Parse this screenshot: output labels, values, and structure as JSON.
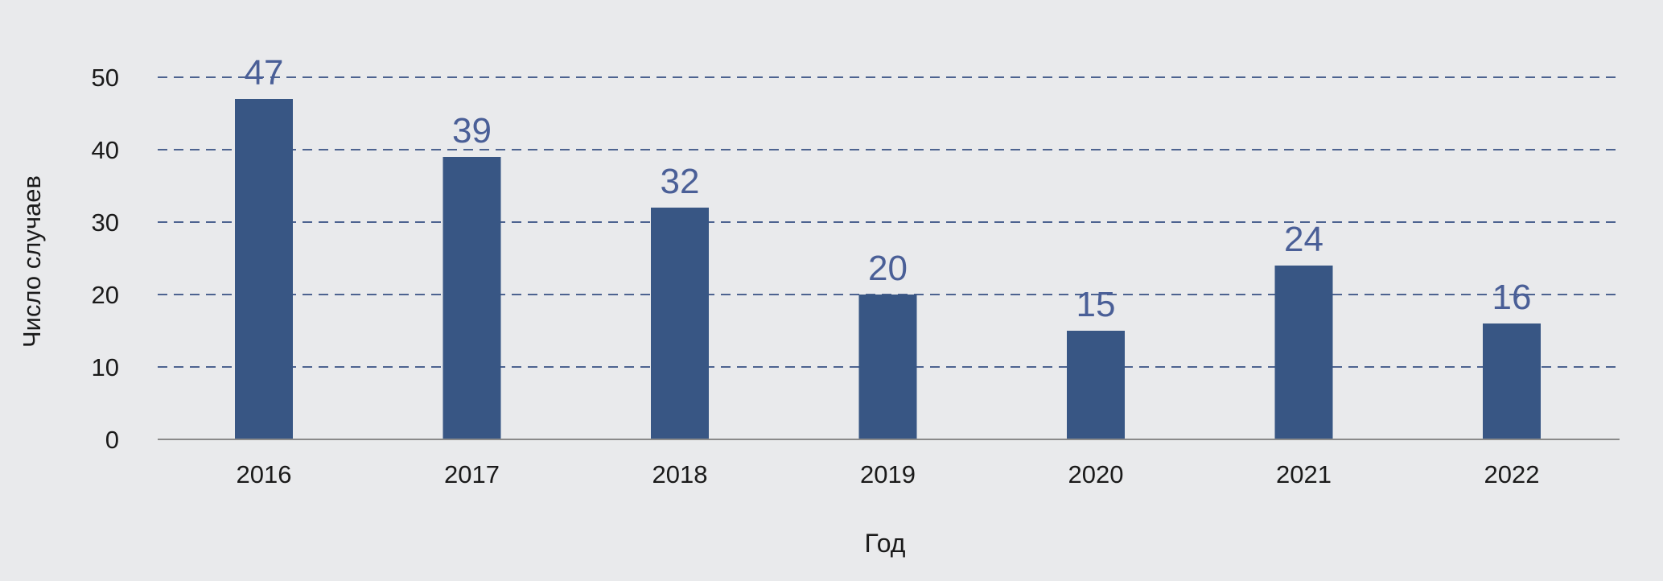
{
  "chart_data": {
    "type": "bar",
    "categories": [
      "2016",
      "2017",
      "2018",
      "2019",
      "2020",
      "2021",
      "2022"
    ],
    "values": [
      47,
      39,
      32,
      20,
      15,
      24,
      16
    ],
    "data_labels": [
      "47",
      "39",
      "32",
      "20",
      "15",
      "24",
      "16"
    ],
    "xlabel": "Год",
    "ylabel": "Число случаев",
    "ylim": [
      0,
      50
    ],
    "yticks": [
      0,
      10,
      20,
      30,
      40,
      50
    ],
    "grid": true,
    "grid_style": "dashed",
    "legend": "none"
  },
  "colors": {
    "background": "#e9eaec",
    "bar": "#385684",
    "data_label": "#4a5f97",
    "grid": "#4d6390",
    "axis": "#8a8a8a"
  }
}
